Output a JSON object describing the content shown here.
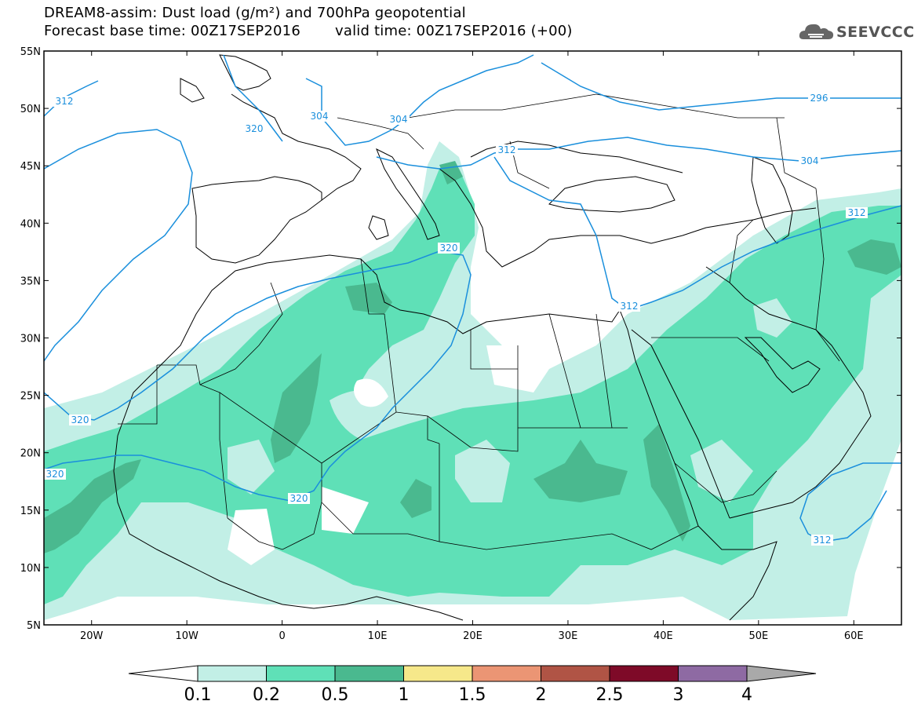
{
  "header": {
    "title_line1": "DREAM8-assim: Dust load (g/m²) and 700hPa geopotential",
    "title_line2_left": "Forecast base time: 00Z17SEP2016",
    "title_line2_right": "valid time: 00Z17SEP2016 (+00)"
  },
  "logo": {
    "text": "SEEVCCC",
    "icon": "cloud-icon"
  },
  "axes": {
    "lat_ticks": [
      "55N",
      "50N",
      "45N",
      "40N",
      "35N",
      "30N",
      "25N",
      "20N",
      "15N",
      "10N",
      "5N"
    ],
    "lon_ticks": [
      "20W",
      "10W",
      "0",
      "10E",
      "20E",
      "30E",
      "40E",
      "50E",
      "60E"
    ],
    "lat_range": [
      5,
      55
    ],
    "lon_range": [
      -25,
      65
    ]
  },
  "contours": {
    "color": "#1a8fdc",
    "labels": [
      "312",
      "320",
      "304",
      "304",
      "312",
      "296",
      "304",
      "312",
      "320",
      "320",
      "312",
      "320",
      "320",
      "312"
    ]
  },
  "colorbar": {
    "labels": [
      "0.1",
      "0.2",
      "0.5",
      "1",
      "1.5",
      "2",
      "2.5",
      "3",
      "4"
    ],
    "colors": [
      "#c2efe6",
      "#5fe0b7",
      "#4ab98f",
      "#f6e88a",
      "#eb9574",
      "#b05445",
      "#7e0a28",
      "#8e6aa3"
    ],
    "under_color": "#ffffff",
    "over_color": "#a9a9a9"
  },
  "dust_colors": {
    "light": "#c2efe6",
    "medium": "#5fe0b7",
    "dark": "#4ab98f"
  }
}
